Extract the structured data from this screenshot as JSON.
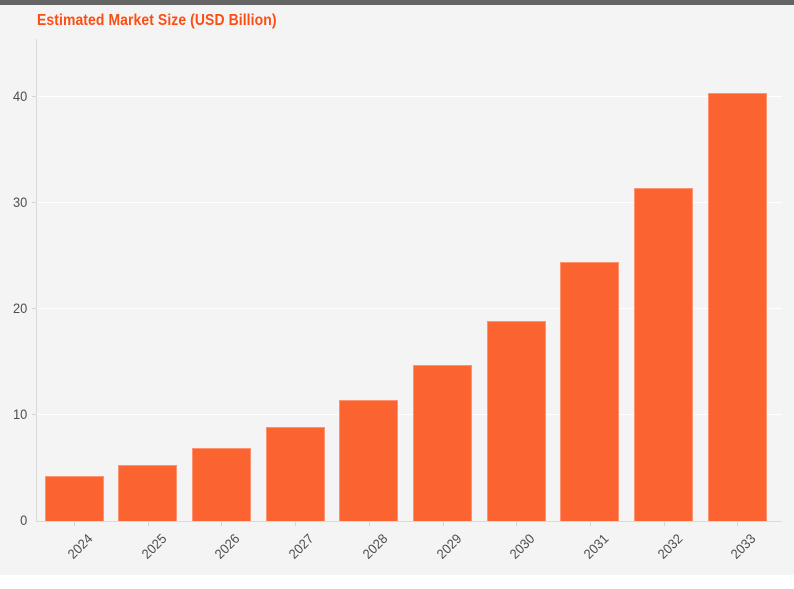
{
  "page": {
    "background_color": "#f4f4f4",
    "top_strip_color": "#646464"
  },
  "chart_data": {
    "type": "bar",
    "title": "Estimated Market Size (USD Billion)",
    "categories": [
      "2024",
      "2025",
      "2026",
      "2027",
      "2028",
      "2029",
      "2030",
      "2031",
      "2032",
      "2033"
    ],
    "values": [
      4.2,
      5.3,
      6.9,
      8.9,
      11.4,
      14.7,
      18.9,
      24.4,
      31.4,
      40.4
    ],
    "xlabel": "",
    "ylabel": "",
    "y_ticks": [
      0,
      10,
      20,
      30,
      40
    ],
    "ylim": [
      0,
      45.5
    ],
    "x_tick_rotation_deg": -45,
    "grid": "horizontal-only",
    "legend": "none",
    "colors": {
      "bar": "#fb6331",
      "bar_border": "#fd9471",
      "title": "#fb4e14",
      "axis_line": "#dadada",
      "gridline": "#ffffff",
      "tick_label": "#4d4d4d",
      "tick_mark": "#d6d6d6"
    }
  }
}
